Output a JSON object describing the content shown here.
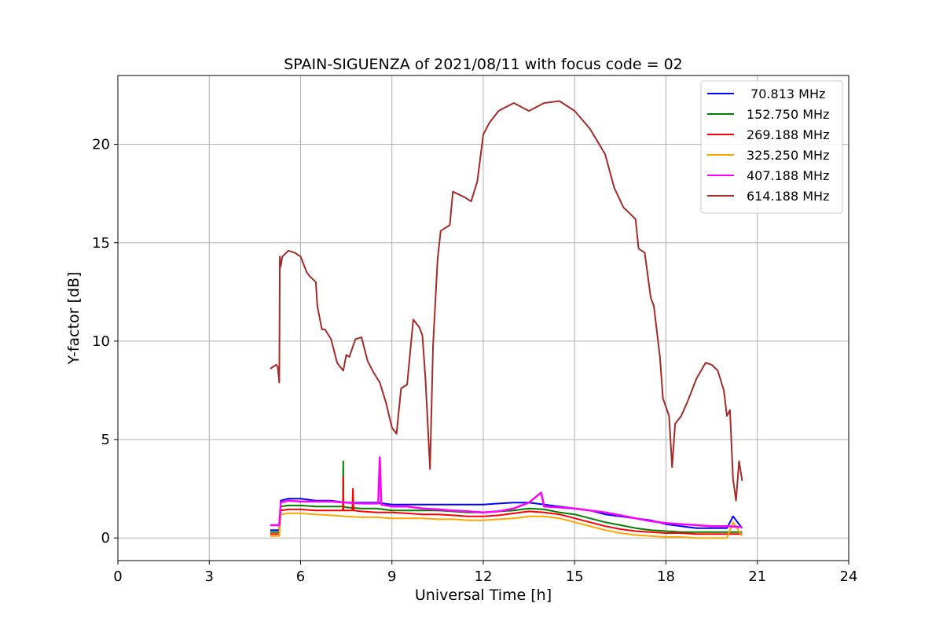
{
  "chart_data": {
    "type": "line",
    "title": "SPAIN-SIGUENZA of 2021/08/11 with focus code = 02",
    "xlabel": "Universal Time [h]",
    "ylabel": "Y-factor [dB]",
    "xlim": [
      0,
      24
    ],
    "ylim": [
      -1.15,
      23.5
    ],
    "xticks": [
      0,
      3,
      6,
      9,
      12,
      15,
      18,
      21,
      24
    ],
    "yticks": [
      0,
      5,
      10,
      15,
      20
    ],
    "grid": true,
    "legend_position": "top-right",
    "series": [
      {
        "name": " 70.813 MHz",
        "color": "#0000ff",
        "x": [
          5.0,
          5.3,
          5.35,
          5.6,
          6.0,
          6.5,
          7.0,
          7.5,
          8.0,
          8.5,
          9.0,
          9.5,
          10.0,
          10.5,
          11.0,
          11.5,
          12.0,
          12.5,
          13.0,
          13.5,
          14.0,
          14.5,
          15.0,
          15.5,
          16.0,
          16.5,
          17.0,
          17.5,
          18.0,
          18.5,
          19.0,
          19.5,
          20.0,
          20.2,
          20.5
        ],
        "y": [
          0.4,
          0.4,
          1.9,
          2.0,
          2.0,
          1.9,
          1.9,
          1.8,
          1.8,
          1.8,
          1.7,
          1.7,
          1.7,
          1.7,
          1.7,
          1.7,
          1.7,
          1.75,
          1.8,
          1.8,
          1.7,
          1.6,
          1.5,
          1.4,
          1.2,
          1.1,
          1.0,
          0.9,
          0.7,
          0.6,
          0.5,
          0.5,
          0.5,
          1.1,
          0.5
        ]
      },
      {
        "name": "152.750 MHz",
        "color": "#008000",
        "x": [
          5.0,
          5.3,
          5.35,
          5.6,
          6.0,
          6.5,
          7.0,
          7.39,
          7.4,
          7.41,
          7.5,
          8.0,
          8.5,
          9.0,
          9.5,
          10.0,
          10.5,
          11.0,
          11.5,
          12.0,
          12.5,
          13.0,
          13.5,
          14.0,
          14.5,
          15.0,
          15.5,
          16.0,
          16.5,
          17.0,
          17.5,
          18.0,
          18.5,
          19.0,
          19.5,
          20.0,
          20.5
        ],
        "y": [
          0.3,
          0.3,
          1.6,
          1.65,
          1.65,
          1.6,
          1.6,
          1.6,
          3.9,
          1.6,
          1.55,
          1.5,
          1.5,
          1.4,
          1.4,
          1.4,
          1.4,
          1.35,
          1.3,
          1.3,
          1.35,
          1.4,
          1.5,
          1.45,
          1.3,
          1.2,
          1.0,
          0.8,
          0.65,
          0.5,
          0.4,
          0.35,
          0.3,
          0.3,
          0.3,
          0.3,
          0.3
        ]
      },
      {
        "name": "269.188 MHz",
        "color": "#ff0000",
        "x": [
          5.0,
          5.3,
          5.35,
          5.6,
          6.0,
          6.5,
          7.0,
          7.39,
          7.4,
          7.41,
          7.7,
          7.72,
          7.74,
          8.0,
          8.5,
          9.0,
          9.5,
          10.0,
          10.5,
          11.0,
          11.5,
          12.0,
          12.5,
          13.0,
          13.5,
          14.0,
          14.5,
          15.0,
          15.5,
          16.0,
          16.5,
          17.0,
          17.5,
          18.0,
          18.5,
          19.0,
          19.5,
          20.0,
          20.5
        ],
        "y": [
          0.2,
          0.2,
          1.4,
          1.45,
          1.45,
          1.4,
          1.4,
          1.4,
          3.1,
          1.4,
          1.4,
          2.5,
          1.4,
          1.35,
          1.3,
          1.3,
          1.25,
          1.2,
          1.2,
          1.15,
          1.1,
          1.1,
          1.15,
          1.25,
          1.35,
          1.3,
          1.2,
          1.0,
          0.8,
          0.6,
          0.45,
          0.35,
          0.3,
          0.25,
          0.25,
          0.2,
          0.2,
          0.2,
          0.2
        ]
      },
      {
        "name": "325.250 MHz",
        "color": "#ffa500",
        "x": [
          5.0,
          5.3,
          5.35,
          5.6,
          6.0,
          6.5,
          7.0,
          7.5,
          8.0,
          8.5,
          9.0,
          9.5,
          10.0,
          10.5,
          11.0,
          11.5,
          12.0,
          12.5,
          13.0,
          13.5,
          14.0,
          14.5,
          15.0,
          15.5,
          16.0,
          16.5,
          17.0,
          17.5,
          18.0,
          18.5,
          19.0,
          19.5,
          20.0,
          20.2,
          20.5
        ],
        "y": [
          0.1,
          0.1,
          1.2,
          1.25,
          1.25,
          1.2,
          1.15,
          1.1,
          1.05,
          1.05,
          1.0,
          1.0,
          1.0,
          0.95,
          0.95,
          0.9,
          0.9,
          0.95,
          1.0,
          1.1,
          1.1,
          1.0,
          0.8,
          0.6,
          0.4,
          0.25,
          0.15,
          0.1,
          0.05,
          0.05,
          0.0,
          0.0,
          0.0,
          0.8,
          0.1
        ]
      },
      {
        "name": "407.188 MHz",
        "color": "#ff00ff",
        "x": [
          5.0,
          5.3,
          5.35,
          5.6,
          6.0,
          6.5,
          7.0,
          7.5,
          8.0,
          8.55,
          8.6,
          8.65,
          9.0,
          9.5,
          10.0,
          10.5,
          11.0,
          11.5,
          12.0,
          12.5,
          13.0,
          13.5,
          13.9,
          14.0,
          14.5,
          15.0,
          15.5,
          16.0,
          16.5,
          17.0,
          17.5,
          18.0,
          18.5,
          19.0,
          19.5,
          20.0,
          20.5
        ],
        "y": [
          0.65,
          0.65,
          1.8,
          1.9,
          1.85,
          1.85,
          1.85,
          1.8,
          1.75,
          1.75,
          4.1,
          1.7,
          1.6,
          1.6,
          1.5,
          1.45,
          1.4,
          1.35,
          1.3,
          1.35,
          1.5,
          1.8,
          2.3,
          1.6,
          1.55,
          1.5,
          1.4,
          1.3,
          1.15,
          1.0,
          0.85,
          0.75,
          0.7,
          0.65,
          0.6,
          0.6,
          0.55
        ]
      },
      {
        "name": "614.188 MHz",
        "color": "#a52a2a",
        "x": [
          5.0,
          5.2,
          5.25,
          5.3,
          5.32,
          5.35,
          5.4,
          5.6,
          5.8,
          6.0,
          6.2,
          6.3,
          6.5,
          6.55,
          6.7,
          6.8,
          7.0,
          7.2,
          7.4,
          7.5,
          7.6,
          7.8,
          8.0,
          8.2,
          8.4,
          8.6,
          8.8,
          9.0,
          9.15,
          9.3,
          9.5,
          9.7,
          9.9,
          10.0,
          10.1,
          10.25,
          10.35,
          10.5,
          10.6,
          10.9,
          11.0,
          11.4,
          11.6,
          11.8,
          12.0,
          12.2,
          12.5,
          13.0,
          13.5,
          14.0,
          14.5,
          15.0,
          15.5,
          16.0,
          16.3,
          16.6,
          17.0,
          17.1,
          17.3,
          17.5,
          17.6,
          17.8,
          17.9,
          18.1,
          18.2,
          18.3,
          18.5,
          18.7,
          19.0,
          19.3,
          19.5,
          19.7,
          19.9,
          20.0,
          20.1,
          20.2,
          20.3,
          20.4,
          20.5
        ],
        "y": [
          8.6,
          8.8,
          8.7,
          7.9,
          14.3,
          13.8,
          14.3,
          14.6,
          14.5,
          14.3,
          13.5,
          13.3,
          13.0,
          11.8,
          10.6,
          10.6,
          10.1,
          8.9,
          8.5,
          9.3,
          9.2,
          10.1,
          10.2,
          9.0,
          8.4,
          7.9,
          6.9,
          5.6,
          5.3,
          7.6,
          7.8,
          11.1,
          10.7,
          10.3,
          8.1,
          3.5,
          9.8,
          14.2,
          15.6,
          15.9,
          17.6,
          17.3,
          17.1,
          18.1,
          20.5,
          21.1,
          21.7,
          22.1,
          21.7,
          22.1,
          22.2,
          21.7,
          20.8,
          19.5,
          17.8,
          16.8,
          16.2,
          14.7,
          14.5,
          12.2,
          11.8,
          9.2,
          7.1,
          6.2,
          3.6,
          5.8,
          6.2,
          6.9,
          8.1,
          8.9,
          8.8,
          8.5,
          7.5,
          6.2,
          6.5,
          3.0,
          1.9,
          3.9,
          2.9
        ]
      }
    ]
  }
}
